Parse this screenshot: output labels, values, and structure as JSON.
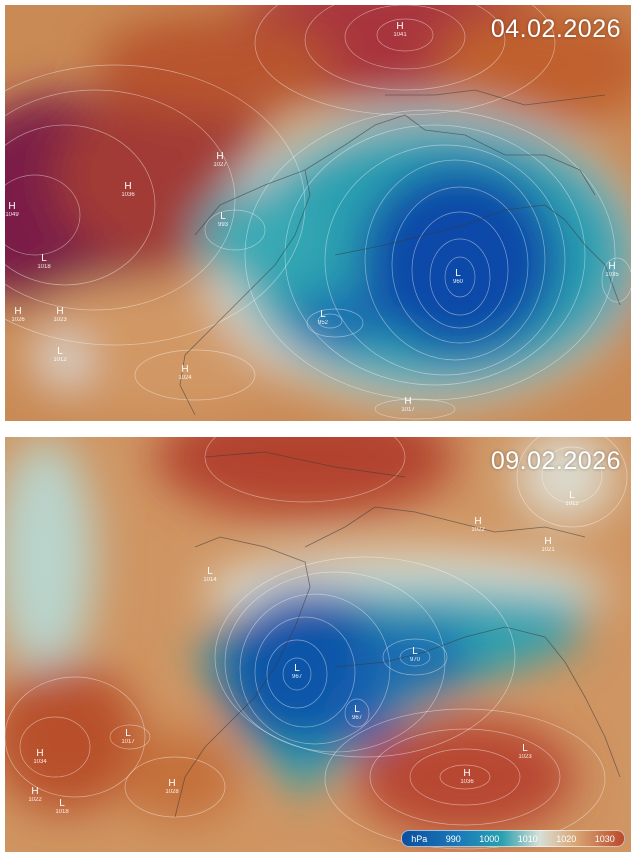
{
  "panels": [
    {
      "date": "04.02.2026",
      "centers": [
        {
          "type": "H",
          "value": "1041"
        },
        {
          "type": "H",
          "value": "1049"
        },
        {
          "type": "H",
          "value": "1036"
        },
        {
          "type": "H",
          "value": "1027"
        },
        {
          "type": "L",
          "value": "993"
        },
        {
          "type": "L",
          "value": "1018"
        },
        {
          "type": "H",
          "value": "1026"
        },
        {
          "type": "H",
          "value": "1023"
        },
        {
          "type": "L",
          "value": "1012"
        },
        {
          "type": "H",
          "value": "1024"
        },
        {
          "type": "L",
          "value": "952"
        },
        {
          "type": "L",
          "value": "960"
        },
        {
          "type": "H",
          "value": "1035"
        },
        {
          "type": "H",
          "value": "1017"
        }
      ]
    },
    {
      "date": "09.02.2026",
      "centers": [
        {
          "type": "L",
          "value": "1012"
        },
        {
          "type": "H",
          "value": "1022"
        },
        {
          "type": "H",
          "value": "1021"
        },
        {
          "type": "L",
          "value": "1014"
        },
        {
          "type": "L",
          "value": "967"
        },
        {
          "type": "L",
          "value": "970"
        },
        {
          "type": "L",
          "value": "967"
        },
        {
          "type": "L",
          "value": "1017"
        },
        {
          "type": "H",
          "value": "1034"
        },
        {
          "type": "H",
          "value": "1028"
        },
        {
          "type": "H",
          "value": "1022"
        },
        {
          "type": "L",
          "value": "1018"
        },
        {
          "type": "L",
          "value": "1023"
        },
        {
          "type": "H",
          "value": "1036"
        }
      ]
    }
  ],
  "legend": {
    "unit": "hPa",
    "ticks": [
      "990",
      "1000",
      "1010",
      "1020",
      "1030"
    ],
    "colors": {
      "low": "#0b4f9e",
      "mid": "#d7dfd6",
      "high": "#b84a2a"
    }
  }
}
